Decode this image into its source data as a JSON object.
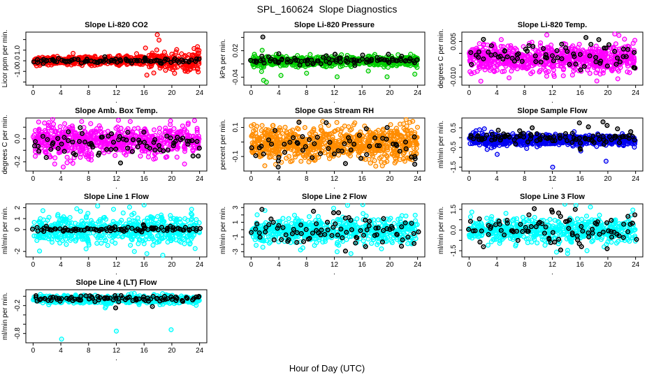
{
  "page": {
    "title": "SPL_160624  Slope Diagnostics",
    "xlabel": "Hour of Day (UTC)",
    "background": "#FFFFFF",
    "axis_color": "#000000",
    "overlay_color": "#000000"
  },
  "x_axis": {
    "range": [
      0,
      24
    ],
    "ticks": [
      0,
      4,
      8,
      12,
      16,
      20,
      24
    ],
    "sub_label": "."
  },
  "chart_data": [
    {
      "type": "scatter",
      "id": "li820-co2",
      "title": "Slope Li-820 CO2",
      "ylabel": "Licor ppm per min.",
      "color": "#FF0000",
      "ylim": [
        -2.3,
        2.7
      ],
      "yticks": [
        {
          "v": 2,
          "label": ""
        },
        {
          "v": 1,
          "label": "1.0"
        },
        {
          "v": 0,
          "label": "0.0"
        },
        {
          "v": -1,
          "label": "-1.0"
        },
        {
          "v": -2,
          "label": ""
        }
      ],
      "points": {
        "n": 620,
        "mean": 0.02,
        "sd": 0.2,
        "seed": 101,
        "spread_from_x": 15,
        "spread_mult": 3.2
      },
      "black": {
        "n": 85,
        "mean": -0.02,
        "sd": 0.1,
        "seed": 201
      },
      "outliers": [
        [
          17.9,
          2.45
        ],
        [
          18.15,
          1.95
        ],
        [
          16.4,
          -1.35
        ],
        [
          21.9,
          -0.95
        ],
        [
          16.2,
          1.2
        ],
        [
          23.2,
          1.15
        ],
        [
          17.4,
          -1.15
        ],
        [
          20.7,
          1.05
        ],
        [
          22.6,
          -0.85
        ],
        [
          19.1,
          -0.9
        ]
      ],
      "black_outliers": [
        [
          16.1,
          0.2
        ],
        [
          16.15,
          0.28
        ]
      ]
    },
    {
      "type": "scatter",
      "id": "li820-pressure",
      "title": "Slope Li-820 Pressure",
      "ylabel": "kPa per min.",
      "color": "#00CC00",
      "ylim": [
        -0.058,
        0.062
      ],
      "yticks": [
        {
          "v": 0.05,
          "label": ""
        },
        {
          "v": 0.02,
          "label": "0.02"
        },
        {
          "v": -0.01,
          "label": ""
        },
        {
          "v": -0.04,
          "label": "-0.04"
        }
      ],
      "points": {
        "n": 650,
        "mean": -0.004,
        "sd": 0.0055,
        "seed": 102
      },
      "black": {
        "n": 85,
        "mean": -0.002,
        "sd": 0.005,
        "seed": 202
      },
      "outliers": [
        [
          1.8,
          -0.047
        ],
        [
          2.2,
          -0.051
        ],
        [
          4.3,
          -0.036
        ],
        [
          8.0,
          -0.031
        ],
        [
          12.4,
          -0.039
        ],
        [
          19.6,
          -0.039
        ],
        [
          23.6,
          -0.033
        ],
        [
          1.5,
          -0.027
        ],
        [
          16.9,
          -0.026
        ],
        [
          1.6,
          0.021
        ],
        [
          23.0,
          0.012
        ]
      ],
      "black_outliers": [
        [
          1.7,
          0.051
        ],
        [
          4.0,
          0.013
        ],
        [
          12.1,
          0.012
        ],
        [
          19.8,
          0.012
        ]
      ]
    },
    {
      "type": "scatter",
      "id": "li820-temp",
      "title": "Slope Li-820 Temp.",
      "ylabel": "degrees C per min.",
      "color": "#FF00FF",
      "ylim": [
        -0.0135,
        0.009
      ],
      "yticks": [
        {
          "v": 0.005,
          "label": "0.005"
        },
        {
          "v": 0,
          "label": ""
        },
        {
          "v": -0.005,
          "label": ""
        },
        {
          "v": -0.01,
          "label": "-0.010"
        }
      ],
      "points": {
        "n": 680,
        "mean": -0.0022,
        "sd": 0.0028,
        "seed": 103
      },
      "black": {
        "n": 70,
        "mean": -0.002,
        "sd": 0.0027,
        "seed": 203
      },
      "outliers": [
        [
          1.7,
          -0.0118
        ],
        [
          11.2,
          0.0078
        ],
        [
          21.0,
          0.0082
        ],
        [
          21.6,
          0.0076
        ],
        [
          14.9,
          -0.0092
        ],
        [
          18.9,
          -0.0088
        ],
        [
          8.9,
          -0.0086
        ],
        [
          22.4,
          0.006
        ],
        [
          23.9,
          0.0055
        ],
        [
          12.2,
          -0.009
        ]
      ],
      "black_outliers": [
        [
          18.7,
          0.0058
        ],
        [
          23.9,
          -0.0062
        ]
      ]
    },
    {
      "type": "scatter",
      "id": "amb-box-temp",
      "title": "Slope Amb. Box Temp.",
      "ylabel": "degrees C per min.",
      "color": "#FF00FF",
      "ylim": [
        -0.28,
        0.18
      ],
      "yticks": [
        {
          "v": 0.1,
          "label": ""
        },
        {
          "v": 0,
          "label": "0.0"
        },
        {
          "v": -0.1,
          "label": ""
        },
        {
          "v": -0.2,
          "label": "-0.2"
        }
      ],
      "points": {
        "n": 620,
        "mean": -0.025,
        "sd": 0.068,
        "seed": 104
      },
      "black": {
        "n": 75,
        "mean": -0.04,
        "sd": 0.06,
        "seed": 204
      },
      "outliers": [
        [
          4.35,
          -0.245
        ],
        [
          0.8,
          0.145
        ],
        [
          7.0,
          0.15
        ],
        [
          12.3,
          0.16
        ],
        [
          14.0,
          0.15
        ]
      ],
      "black_outliers": [
        [
          12.6,
          -0.21
        ],
        [
          23.8,
          -0.15
        ]
      ]
    },
    {
      "type": "scatter",
      "id": "gas-stream-rh",
      "title": "Slope Gas Stream RH",
      "ylabel": "percent per min.",
      "color": "#FF8C00",
      "ylim": [
        -0.2,
        0.165
      ],
      "yticks": [
        {
          "v": 0.1,
          "label": "0.1"
        },
        {
          "v": 0,
          "label": ""
        },
        {
          "v": -0.1,
          "label": "-0.1"
        }
      ],
      "points": {
        "n": 720,
        "mean": -0.008,
        "sd": 0.058,
        "seed": 105
      },
      "black": {
        "n": 55,
        "mean": -0.015,
        "sd": 0.06,
        "seed": 205
      },
      "outliers": [
        [
          6.9,
          0.138
        ],
        [
          23.3,
          0.142
        ],
        [
          0.4,
          0.12
        ]
      ],
      "black_outliers": [
        [
          3.9,
          -0.172
        ],
        [
          13.6,
          -0.148
        ],
        [
          6.9,
          0.135
        ],
        [
          23.6,
          -0.1
        ],
        [
          23.65,
          -0.115
        ]
      ]
    },
    {
      "type": "scatter",
      "id": "sample-flow",
      "title": "Slope Sample Flow",
      "ylabel": "ml/min per min.",
      "color": "#0000F0",
      "ylim": [
        -1.7,
        1.0
      ],
      "yticks": [
        {
          "v": 0.5,
          "label": "0.5"
        },
        {
          "v": 0,
          "label": ""
        },
        {
          "v": -0.5,
          "label": "-0.5"
        },
        {
          "v": -1,
          "label": ""
        },
        {
          "v": -1.5,
          "label": "-1.5"
        }
      ],
      "points": {
        "n": 720,
        "mean": -0.12,
        "sd": 0.13,
        "seed": 106
      },
      "black": {
        "n": 85,
        "mean": -0.02,
        "sd": 0.12,
        "seed": 206
      },
      "outliers": [
        [
          4.05,
          -0.85
        ],
        [
          12.05,
          -1.5
        ],
        [
          19.75,
          -1.2
        ],
        [
          16.1,
          -0.68
        ],
        [
          2.6,
          -0.6
        ],
        [
          8.3,
          -0.55
        ],
        [
          1.0,
          0.35
        ],
        [
          1.5,
          0.4
        ],
        [
          2.2,
          0.45
        ]
      ],
      "black_outliers": [
        [
          9.1,
          0.5
        ],
        [
          15.9,
          0.75
        ],
        [
          19.3,
          0.8
        ],
        [
          17.2,
          0.55
        ],
        [
          19.9,
          0.62
        ],
        [
          21.4,
          0.45
        ],
        [
          4.2,
          0.38
        ],
        [
          7.3,
          0.35
        ],
        [
          23.3,
          0.3
        ],
        [
          16.0,
          -0.55
        ],
        [
          16.05,
          -0.6
        ]
      ]
    },
    {
      "type": "scatter",
      "id": "line1-flow",
      "title": "Slope Line 1 Flow",
      "ylabel": "ml/min per min.",
      "color": "#00FFFF",
      "ylim": [
        -2.5,
        2.35
      ],
      "yticks": [
        {
          "v": 2,
          "label": "2"
        },
        {
          "v": 1,
          "label": "1"
        },
        {
          "v": 0,
          "label": "0"
        },
        {
          "v": -2,
          "label": "-2"
        }
      ],
      "points": {
        "n": 560,
        "mean": 0,
        "sd": 0.62,
        "seed": 107
      },
      "black": {
        "n": 85,
        "mean": 0.02,
        "sd": 0.1,
        "seed": 207
      },
      "outliers": [
        [
          9.3,
          2.15
        ],
        [
          13.9,
          2.05
        ],
        [
          16.4,
          -2.2
        ],
        [
          6.3,
          1.9
        ],
        [
          16.0,
          2.25
        ],
        [
          18.7,
          -2.35
        ],
        [
          14.6,
          -2.0
        ],
        [
          11.6,
          1.85
        ]
      ],
      "black_outliers": [
        [
          15.9,
          0.45
        ],
        [
          15.95,
          0.35
        ],
        [
          11.8,
          0.25
        ],
        [
          19.8,
          0.3
        ]
      ]
    },
    {
      "type": "scatter",
      "id": "line2-flow",
      "title": "Slope Line 2 Flow",
      "ylabel": "ml/min per min.",
      "color": "#00FFFF",
      "ylim": [
        -3.7,
        3.5
      ],
      "yticks": [
        {
          "v": 3,
          "label": "3"
        },
        {
          "v": 2,
          "label": ""
        },
        {
          "v": 1,
          "label": "1"
        },
        {
          "v": 0,
          "label": ""
        },
        {
          "v": -1,
          "label": "-1"
        },
        {
          "v": -2,
          "label": ""
        },
        {
          "v": -3,
          "label": "-3"
        }
      ],
      "points": {
        "n": 560,
        "mean": -0.1,
        "sd": 0.85,
        "seed": 108
      },
      "black": {
        "n": 80,
        "mean": 0,
        "sd": 0.95,
        "seed": 208
      },
      "outliers": [
        [
          13.9,
          3.3
        ],
        [
          16.1,
          3.4
        ],
        [
          12.4,
          -3.0
        ],
        [
          14.4,
          -3.25
        ],
        [
          2.0,
          2.6
        ],
        [
          11.9,
          2.9
        ],
        [
          18.8,
          -2.6
        ]
      ],
      "black_outliers": [
        [
          13.6,
          -2.9
        ],
        [
          11.9,
          2.3
        ],
        [
          16.5,
          -2.3
        ],
        [
          9.0,
          2.5
        ],
        [
          12.6,
          2.3
        ]
      ]
    },
    {
      "type": "scatter",
      "id": "line3-flow",
      "title": "Slope Line 3 Flow",
      "ylabel": "ml/min per min.",
      "color": "#00FFFF",
      "ylim": [
        -1.95,
        1.9
      ],
      "yticks": [
        {
          "v": 1.5,
          "label": "1.5"
        },
        {
          "v": 0.75,
          "label": ""
        },
        {
          "v": 0,
          "label": "0.0"
        },
        {
          "v": -0.75,
          "label": ""
        },
        {
          "v": -1.5,
          "label": "-1.5"
        }
      ],
      "points": {
        "n": 560,
        "mean": -0.02,
        "sd": 0.45,
        "seed": 109
      },
      "black": {
        "n": 80,
        "mean": 0,
        "sd": 0.55,
        "seed": 209
      },
      "outliers": [
        [
          13.8,
          1.88
        ],
        [
          15.4,
          1.8
        ],
        [
          14.2,
          -1.7
        ],
        [
          17.0,
          -1.5
        ],
        [
          12.6,
          -1.6
        ],
        [
          23.6,
          1.45
        ],
        [
          0.4,
          1.3
        ]
      ],
      "black_outliers": [
        [
          9.4,
          1.55
        ],
        [
          11.9,
          1.45
        ],
        [
          12.0,
          1.3
        ],
        [
          15.3,
          1.5
        ],
        [
          23.9,
          1.1
        ],
        [
          13.2,
          -1.45
        ],
        [
          19.9,
          -1.35
        ],
        [
          16.2,
          -1.2
        ]
      ]
    },
    {
      "type": "scatter",
      "id": "line4-lt-flow",
      "title": "Slope Line 4 (LT) Flow",
      "ylabel": "ml/min per min.",
      "color": "#00FFFF",
      "ylim": [
        -1.0,
        0.14
      ],
      "yticks": [
        {
          "v": 0,
          "label": ""
        },
        {
          "v": -0.2,
          "label": "-0.2"
        },
        {
          "v": -0.4,
          "label": ""
        },
        {
          "v": -0.6,
          "label": ""
        },
        {
          "v": -0.8,
          "label": "-0.8"
        }
      ],
      "points": {
        "n": 620,
        "mean": -0.07,
        "sd": 0.042,
        "seed": 110
      },
      "black": {
        "n": 85,
        "mean": -0.05,
        "sd": 0.035,
        "seed": 210
      },
      "outliers": [
        [
          4.1,
          -0.92
        ],
        [
          12.0,
          -0.75
        ],
        [
          19.9,
          -0.72
        ],
        [
          10.4,
          -0.25
        ],
        [
          10.5,
          -0.22
        ]
      ],
      "black_outliers": [
        [
          11.9,
          -0.25
        ],
        [
          17.2,
          -0.22
        ]
      ]
    }
  ]
}
